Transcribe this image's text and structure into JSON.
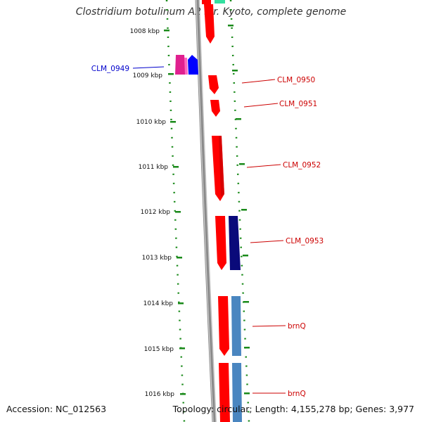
{
  "title": "Clostridium botulinum A2 str. Kyoto, complete genome",
  "footer": {
    "accession": "Accession: NC_012563",
    "summary": "Topology: circular; Length: 4,155,278 bp; Genes: 3,977"
  },
  "colors": {
    "background": "#ffffff",
    "backbone": "#8a8a8a",
    "scale_ticks": "#1a8a1a",
    "forward_gene": "#ff0000",
    "forward_label": "#cc0000",
    "reverse_label": "#0000cc"
  },
  "ruler": {
    "unit": "kbp",
    "ticks": [
      {
        "label": "1008 kbp",
        "kbp": 1008
      },
      {
        "label": "1009 kbp",
        "kbp": 1009
      },
      {
        "label": "1010 kbp",
        "kbp": 1010
      },
      {
        "label": "1011 kbp",
        "kbp": 1011
      },
      {
        "label": "1012 kbp",
        "kbp": 1012
      },
      {
        "label": "1013 kbp",
        "kbp": 1013
      },
      {
        "label": "1014 kbp",
        "kbp": 1014
      },
      {
        "label": "1015 kbp",
        "kbp": 1015
      },
      {
        "label": "1016 kbp",
        "kbp": 1016
      }
    ]
  },
  "gene_labels": [
    {
      "text": "CLM_0949",
      "strand": "reverse"
    },
    {
      "text": "CLM_0950",
      "strand": "forward"
    },
    {
      "text": "CLM_0951",
      "strand": "forward"
    },
    {
      "text": "CLM_0952",
      "strand": "forward"
    },
    {
      "text": "CLM_0953",
      "strand": "forward"
    },
    {
      "text": "brnQ",
      "strand": "forward"
    },
    {
      "text": "brnQ",
      "strand": "forward"
    }
  ]
}
